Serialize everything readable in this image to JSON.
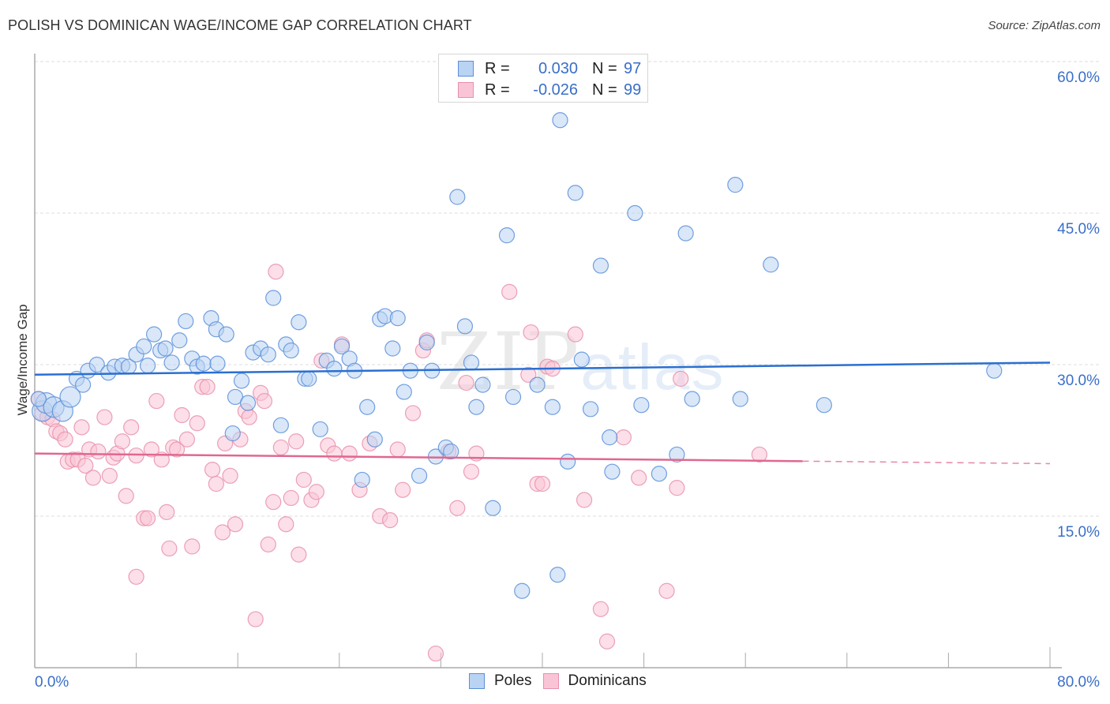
{
  "header": {
    "title": "POLISH VS DOMINICAN WAGE/INCOME GAP CORRELATION CHART",
    "source": "Source: ZipAtlas.com"
  },
  "watermark": {
    "zip": "ZIP",
    "atlas": "atlas"
  },
  "legend": {
    "rows": [
      {
        "series": "Poles",
        "r_label": "R =",
        "r_value": "0.030",
        "n_label": "N =",
        "n_value": "97"
      },
      {
        "series": "Dominicans",
        "r_label": "R =",
        "r_value": "-0.026",
        "n_label": "N =",
        "n_value": "99"
      }
    ]
  },
  "bottom_legend": {
    "items": [
      "Poles",
      "Dominicans"
    ]
  },
  "colors": {
    "poles_fill": "#b9d3f3",
    "poles_stroke": "#5b8fd9",
    "poles_line": "#2a6fd1",
    "dominicans_fill": "#f9c5d6",
    "dominicans_stroke": "#e890ac",
    "dominicans_line": "#e06890",
    "tick_label": "#3a6fc9"
  },
  "chart_data": {
    "type": "scatter",
    "title": "POLISH VS DOMINICAN WAGE/INCOME GAP CORRELATION CHART",
    "xlabel": "",
    "ylabel": "Wage/Income Gap",
    "xlim": [
      0,
      80
    ],
    "ylim": [
      0,
      63
    ],
    "x_tick_labels": [
      "0.0%",
      "80.0%"
    ],
    "x_ticks": [
      0,
      8,
      16,
      24,
      32,
      40,
      48,
      56,
      64,
      72,
      80
    ],
    "y_ticks": [
      15,
      30,
      45,
      60
    ],
    "y_tick_labels": [
      "15.0%",
      "30.0%",
      "45.0%",
      "60.0%"
    ],
    "grid": "horizontal-dashed",
    "legend_position": "top-center",
    "series": [
      {
        "name": "Poles",
        "r": 0.03,
        "n": 97,
        "trend": {
          "x": [
            0,
            80
          ],
          "y": [
            29.0,
            30.2
          ],
          "dashed_from": null
        },
        "points": [
          [
            0.6,
            25.4
          ],
          [
            0.9,
            26.2
          ],
          [
            1.5,
            25.8
          ],
          [
            2.2,
            25.4
          ],
          [
            2.8,
            26.8
          ],
          [
            3.3,
            28.6
          ],
          [
            3.8,
            28.0
          ],
          [
            4.2,
            29.4
          ],
          [
            4.9,
            30.0
          ],
          [
            5.8,
            29.2
          ],
          [
            6.3,
            29.8
          ],
          [
            6.9,
            29.9
          ],
          [
            7.4,
            29.8
          ],
          [
            8.0,
            31.0
          ],
          [
            8.6,
            31.8
          ],
          [
            8.9,
            29.9
          ],
          [
            9.4,
            33.0
          ],
          [
            9.9,
            31.4
          ],
          [
            10.3,
            31.6
          ],
          [
            10.8,
            30.2
          ],
          [
            11.4,
            32.4
          ],
          [
            11.9,
            34.3
          ],
          [
            12.4,
            30.6
          ],
          [
            12.8,
            29.8
          ],
          [
            13.3,
            30.1
          ],
          [
            13.9,
            34.6
          ],
          [
            14.3,
            33.5
          ],
          [
            15.1,
            33.0
          ],
          [
            14.4,
            30.1
          ],
          [
            15.8,
            26.8
          ],
          [
            16.3,
            28.4
          ],
          [
            16.8,
            26.2
          ],
          [
            17.2,
            31.2
          ],
          [
            17.8,
            31.6
          ],
          [
            18.4,
            31.0
          ],
          [
            18.8,
            36.6
          ],
          [
            19.4,
            24.0
          ],
          [
            19.8,
            32.0
          ],
          [
            20.2,
            31.4
          ],
          [
            20.8,
            34.2
          ],
          [
            21.3,
            28.6
          ],
          [
            21.6,
            28.6
          ],
          [
            22.5,
            23.6
          ],
          [
            23.0,
            30.4
          ],
          [
            23.6,
            29.6
          ],
          [
            24.2,
            31.8
          ],
          [
            24.8,
            30.6
          ],
          [
            25.2,
            29.4
          ],
          [
            25.8,
            18.6
          ],
          [
            26.2,
            25.8
          ],
          [
            26.8,
            22.6
          ],
          [
            27.2,
            34.5
          ],
          [
            27.6,
            34.8
          ],
          [
            28.2,
            31.6
          ],
          [
            28.6,
            34.6
          ],
          [
            29.1,
            27.3
          ],
          [
            29.6,
            29.4
          ],
          [
            30.3,
            19.0
          ],
          [
            30.9,
            32.2
          ],
          [
            31.3,
            29.4
          ],
          [
            31.6,
            20.9
          ],
          [
            32.4,
            21.8
          ],
          [
            32.8,
            21.4
          ],
          [
            33.3,
            46.6
          ],
          [
            33.9,
            33.8
          ],
          [
            34.4,
            30.2
          ],
          [
            34.8,
            25.8
          ],
          [
            35.3,
            28.0
          ],
          [
            36.1,
            15.8
          ],
          [
            37.2,
            42.8
          ],
          [
            37.7,
            26.8
          ],
          [
            38.4,
            7.6
          ],
          [
            39.6,
            28.0
          ],
          [
            40.8,
            25.8
          ],
          [
            41.4,
            54.2
          ],
          [
            42.0,
            20.4
          ],
          [
            42.6,
            47.0
          ],
          [
            43.1,
            30.5
          ],
          [
            43.8,
            25.6
          ],
          [
            44.6,
            39.8
          ],
          [
            45.3,
            22.8
          ],
          [
            45.5,
            19.4
          ],
          [
            47.3,
            45.0
          ],
          [
            47.8,
            26.0
          ],
          [
            49.2,
            19.2
          ],
          [
            50.6,
            21.1
          ],
          [
            51.3,
            43.0
          ],
          [
            51.8,
            26.6
          ],
          [
            55.2,
            47.8
          ],
          [
            55.6,
            26.6
          ],
          [
            58.0,
            39.9
          ],
          [
            62.2,
            26.0
          ],
          [
            75.6,
            29.4
          ],
          [
            41.2,
            9.2
          ],
          [
            15.6,
            23.2
          ],
          [
            0.3,
            26.6
          ]
        ]
      },
      {
        "name": "Dominicans",
        "r": -0.026,
        "n": 99,
        "trend": {
          "x": [
            0,
            80
          ],
          "y": [
            21.2,
            20.2
          ],
          "solid_until_x": 60.5
        },
        "points": [
          [
            0.3,
            26.6
          ],
          [
            0.6,
            25.2
          ],
          [
            1.0,
            24.8
          ],
          [
            1.4,
            24.6
          ],
          [
            1.7,
            23.4
          ],
          [
            2.0,
            23.2
          ],
          [
            2.4,
            22.6
          ],
          [
            2.6,
            20.4
          ],
          [
            3.0,
            20.6
          ],
          [
            3.4,
            20.6
          ],
          [
            3.7,
            23.8
          ],
          [
            4.0,
            20.0
          ],
          [
            4.3,
            21.6
          ],
          [
            4.6,
            18.8
          ],
          [
            5.0,
            21.4
          ],
          [
            5.5,
            24.8
          ],
          [
            5.9,
            19.0
          ],
          [
            6.2,
            20.8
          ],
          [
            6.5,
            21.2
          ],
          [
            6.9,
            22.4
          ],
          [
            7.2,
            17.0
          ],
          [
            7.6,
            23.8
          ],
          [
            8.0,
            21.0
          ],
          [
            8.6,
            14.8
          ],
          [
            8.9,
            14.8
          ],
          [
            9.2,
            21.6
          ],
          [
            9.6,
            26.4
          ],
          [
            10.0,
            20.6
          ],
          [
            10.4,
            15.4
          ],
          [
            10.6,
            11.8
          ],
          [
            10.9,
            21.8
          ],
          [
            11.2,
            21.6
          ],
          [
            11.6,
            25.0
          ],
          [
            12.0,
            22.6
          ],
          [
            12.4,
            12.0
          ],
          [
            12.8,
            24.2
          ],
          [
            13.2,
            27.8
          ],
          [
            13.6,
            27.8
          ],
          [
            14.0,
            19.6
          ],
          [
            14.3,
            18.2
          ],
          [
            14.8,
            13.4
          ],
          [
            15.0,
            22.2
          ],
          [
            15.4,
            19.0
          ],
          [
            15.8,
            14.2
          ],
          [
            16.2,
            22.6
          ],
          [
            16.6,
            25.4
          ],
          [
            16.9,
            24.8
          ],
          [
            17.4,
            4.8
          ],
          [
            17.8,
            27.2
          ],
          [
            18.1,
            26.4
          ],
          [
            18.4,
            12.2
          ],
          [
            18.8,
            16.4
          ],
          [
            19.0,
            39.2
          ],
          [
            19.4,
            21.8
          ],
          [
            19.8,
            14.2
          ],
          [
            20.2,
            16.8
          ],
          [
            20.6,
            22.4
          ],
          [
            20.8,
            11.2
          ],
          [
            21.2,
            18.6
          ],
          [
            21.8,
            16.6
          ],
          [
            22.2,
            17.4
          ],
          [
            22.6,
            30.4
          ],
          [
            23.1,
            22.0
          ],
          [
            23.6,
            21.2
          ],
          [
            24.2,
            32.0
          ],
          [
            24.8,
            21.2
          ],
          [
            25.6,
            17.6
          ],
          [
            26.4,
            22.2
          ],
          [
            27.2,
            15.0
          ],
          [
            28.0,
            14.6
          ],
          [
            28.6,
            21.6
          ],
          [
            29.0,
            17.6
          ],
          [
            29.8,
            25.2
          ],
          [
            30.6,
            31.4
          ],
          [
            30.9,
            32.4
          ],
          [
            31.6,
            1.4
          ],
          [
            32.6,
            21.4
          ],
          [
            33.3,
            15.8
          ],
          [
            34.0,
            28.2
          ],
          [
            34.4,
            19.4
          ],
          [
            34.8,
            21.2
          ],
          [
            37.4,
            37.2
          ],
          [
            38.9,
            29.0
          ],
          [
            39.1,
            33.2
          ],
          [
            39.6,
            18.2
          ],
          [
            40.4,
            29.8
          ],
          [
            40.8,
            29.6
          ],
          [
            42.6,
            33.0
          ],
          [
            43.3,
            16.6
          ],
          [
            44.6,
            5.8
          ],
          [
            45.1,
            2.6
          ],
          [
            46.4,
            22.8
          ],
          [
            47.6,
            18.8
          ],
          [
            49.8,
            7.6
          ],
          [
            50.6,
            17.8
          ],
          [
            50.9,
            28.6
          ],
          [
            57.1,
            21.1
          ],
          [
            8.0,
            9.0
          ],
          [
            40.0,
            18.2
          ]
        ]
      }
    ]
  }
}
